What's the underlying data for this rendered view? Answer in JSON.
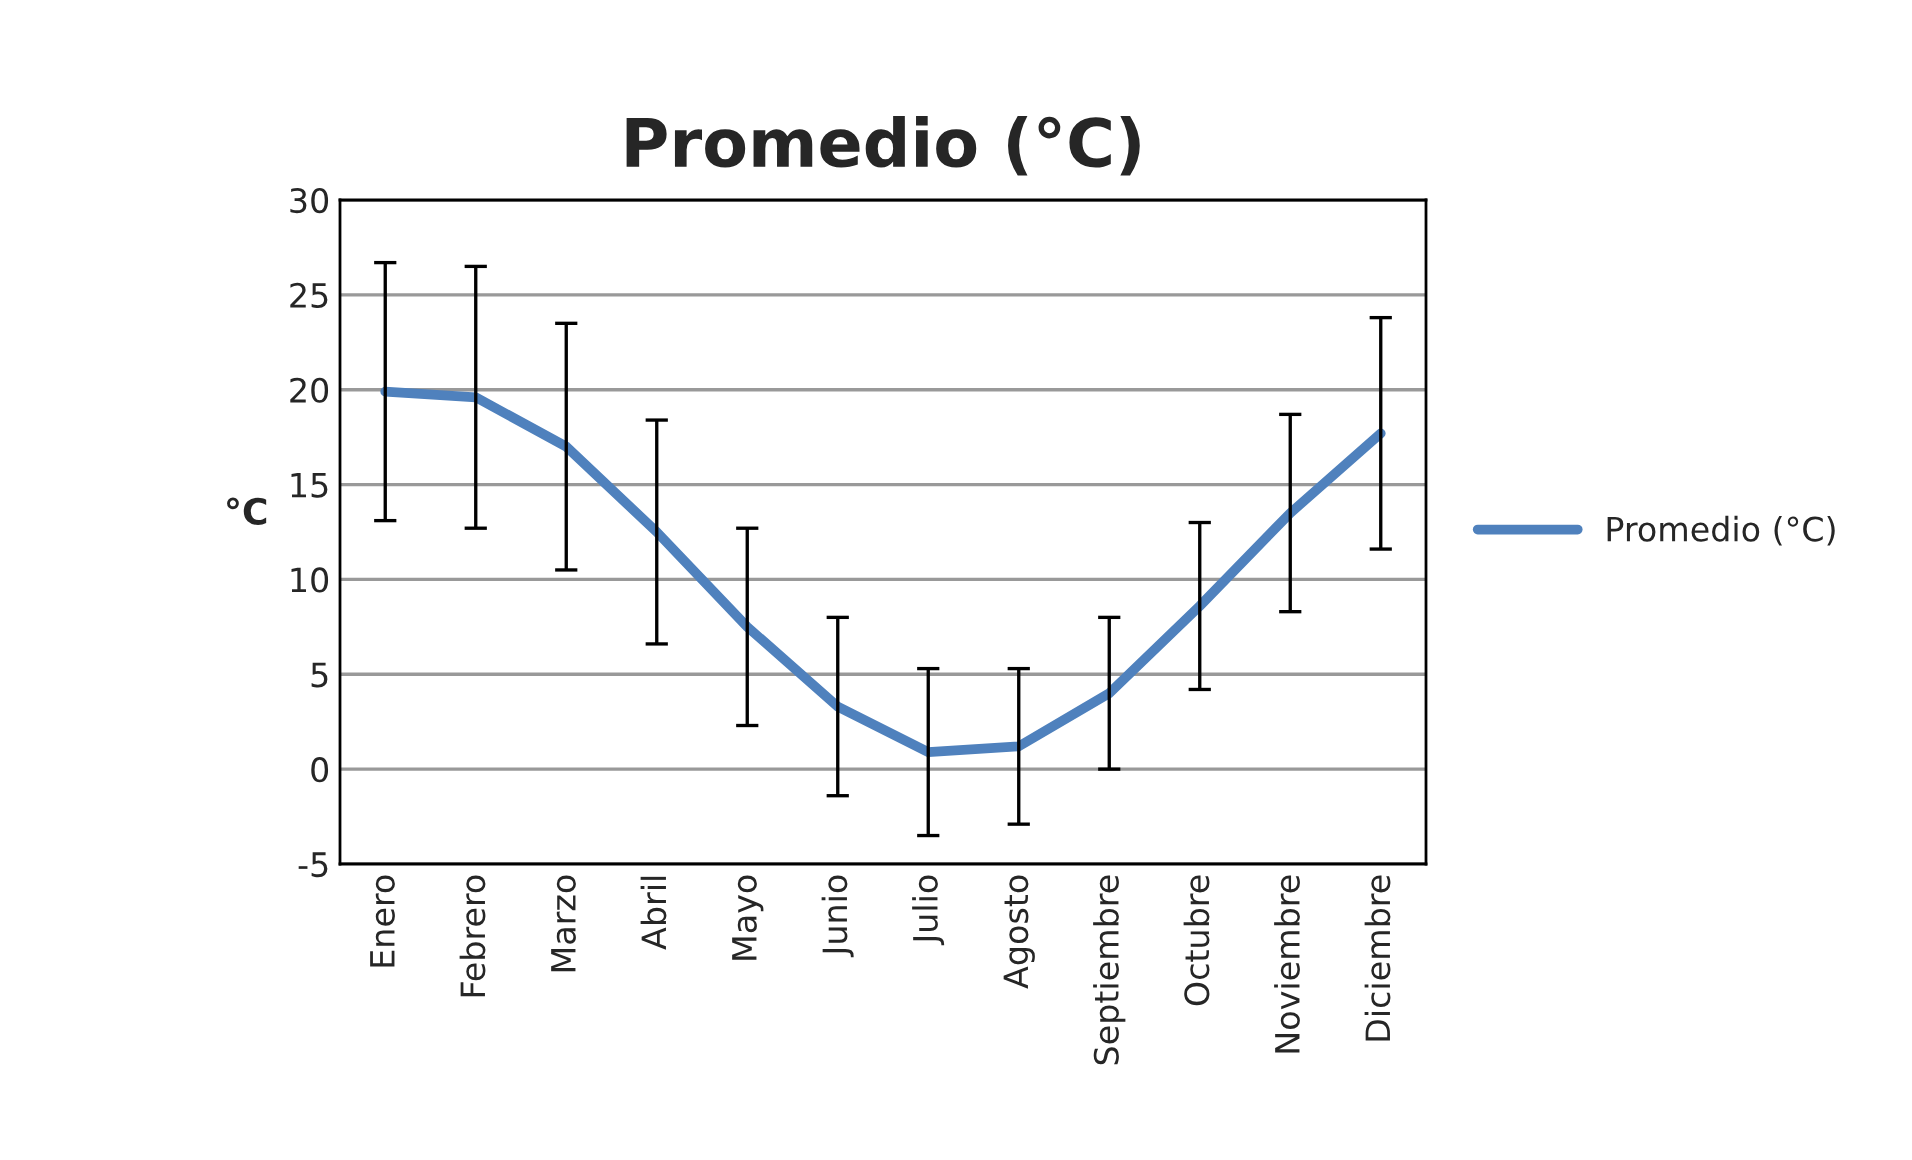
{
  "chart_data": {
    "type": "line",
    "title": "Promedio (°C)",
    "ylabel": "°C",
    "categories": [
      "Enero",
      "Febrero",
      "Marzo",
      "Abril",
      "Mayo",
      "Junio",
      "Julio",
      "Agosto",
      "Septiembre",
      "Octubre",
      "Noviembre",
      "Diciembre"
    ],
    "series": [
      {
        "name": "Promedio (°C)",
        "color": "#4f81bd",
        "values": [
          19.9,
          19.6,
          17.0,
          12.5,
          7.5,
          3.3,
          0.9,
          1.2,
          4.0,
          8.6,
          13.5,
          17.7
        ],
        "errors": [
          6.8,
          6.9,
          6.5,
          5.9,
          5.2,
          4.7,
          4.4,
          4.1,
          4.0,
          4.4,
          5.2,
          6.1
        ]
      }
    ],
    "ylim": [
      -5,
      30
    ],
    "yticks": [
      -5,
      0,
      5,
      10,
      15,
      20,
      25,
      30
    ],
    "grid": "y",
    "legend": "right",
    "marker": "none",
    "line_style": "solid"
  }
}
